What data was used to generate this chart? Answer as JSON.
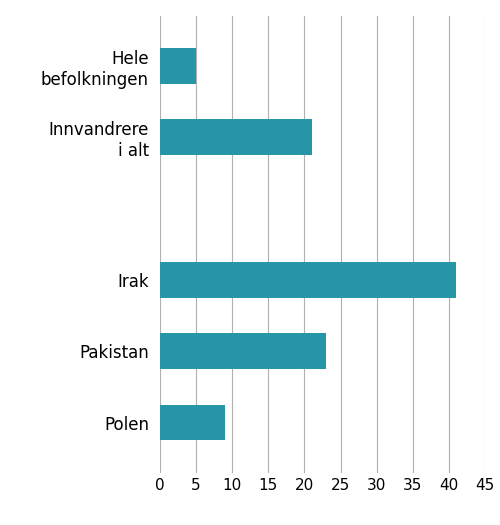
{
  "categories": [
    "Polen",
    "Pakistan",
    "Irak",
    "",
    "Innvandrere\ni alt",
    "Hele\nbefolkningen"
  ],
  "values": [
    9,
    23,
    41,
    0,
    21,
    5
  ],
  "bar_color": "#2796A6",
  "xlim": [
    0,
    45
  ],
  "xticks": [
    0,
    5,
    10,
    15,
    20,
    25,
    30,
    35,
    40,
    45
  ],
  "xtick_labels": [
    "0",
    "5",
    "10",
    "15",
    "20",
    "25",
    "30",
    "35",
    "40",
    "45"
  ],
  "background_color": "#ffffff",
  "grid_color": "#b0b0b0",
  "bar_height": 0.5,
  "tick_fontsize": 11,
  "label_fontsize": 12,
  "figsize": [
    5.0,
    5.25
  ],
  "dpi": 100
}
